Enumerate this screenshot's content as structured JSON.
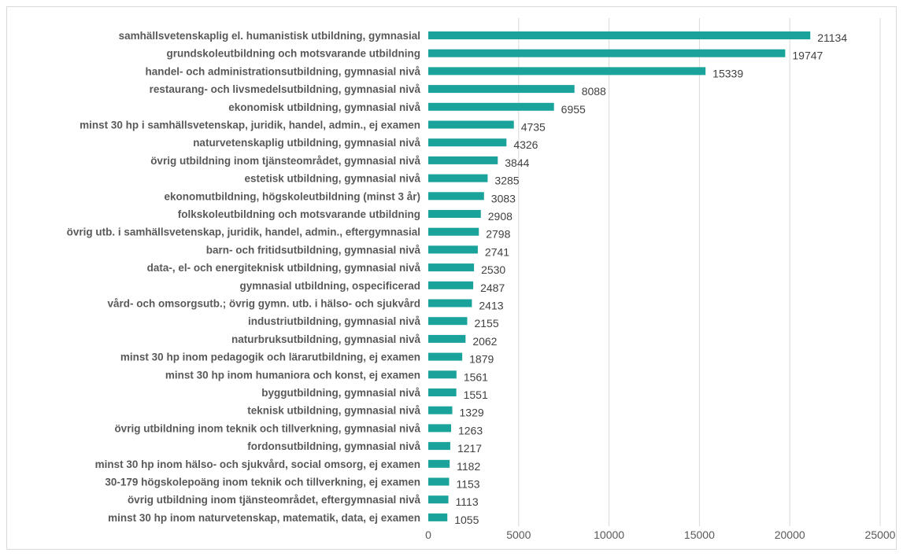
{
  "chart_data": {
    "type": "bar",
    "orientation": "horizontal",
    "categories": [
      "samhällsvetenskaplig el. humanistisk utbildning, gymnasial",
      "grundskoleutbildning och motsvarande utbildning",
      "handel- och administrationsutbildning, gymnasial nivå",
      "restaurang- och livsmedelsutbildning, gymnasial nivå",
      "ekonomisk utbildning, gymnasial nivå",
      "minst 30 hp i samhällsvetenskap, juridik, handel, admin., ej examen",
      "naturvetenskaplig utbildning, gymnasial nivå",
      "övrig utbildning inom tjänsteområdet, gymnasial nivå",
      "estetisk utbildning, gymnasial nivå",
      "ekonomutbildning, högskoleutbildning (minst 3 år)",
      "folkskoleutbildning och motsvarande utbildning",
      "övrig utb. i samhällsvetenskap, juridik, handel, admin., eftergymnasial",
      "barn- och fritidsutbildning, gymnasial nivå",
      "data-, el- och energiteknisk utbildning, gymnasial nivå",
      "gymnasial utbildning, ospecificerad",
      "vård- och omsorgsutb.; övrig gymn. utb. i hälso- och sjukvård",
      "industriutbildning, gymnasial nivå",
      "naturbruksutbildning, gymnasial nivå",
      "minst 30 hp inom pedagogik och lärarutbildning, ej examen",
      "minst 30 hp inom humaniora och konst, ej examen",
      "byggutbildning, gymnasial nivå",
      "teknisk utbildning, gymnasial nivå",
      "övrig utbildning inom teknik och tillverkning, gymnasial nivå",
      "fordonsutbildning, gymnasial nivå",
      "minst 30 hp inom hälso- och sjukvård, social omsorg, ej examen",
      "30-179 högskolepoäng inom teknik och tillverkning, ej examen",
      "övrig utbildning inom tjänsteområdet, eftergymnasial nivå",
      "minst 30 hp inom naturvetenskap, matematik, data, ej examen"
    ],
    "values": [
      21134,
      19747,
      15339,
      8088,
      6955,
      4735,
      4326,
      3844,
      3285,
      3083,
      2908,
      2798,
      2741,
      2530,
      2487,
      2413,
      2155,
      2062,
      1879,
      1561,
      1551,
      1329,
      1263,
      1217,
      1182,
      1153,
      1113,
      1055
    ],
    "xlim": [
      0,
      25000
    ],
    "xticks": [
      "0",
      "5000",
      "10000",
      "15000",
      "20000",
      "25000"
    ],
    "grid": "vertical",
    "legend": "none",
    "title": "",
    "xlabel": "",
    "ylabel": "",
    "bar_color": "#1aa39a",
    "gridline_color": "#d9d9d9"
  }
}
